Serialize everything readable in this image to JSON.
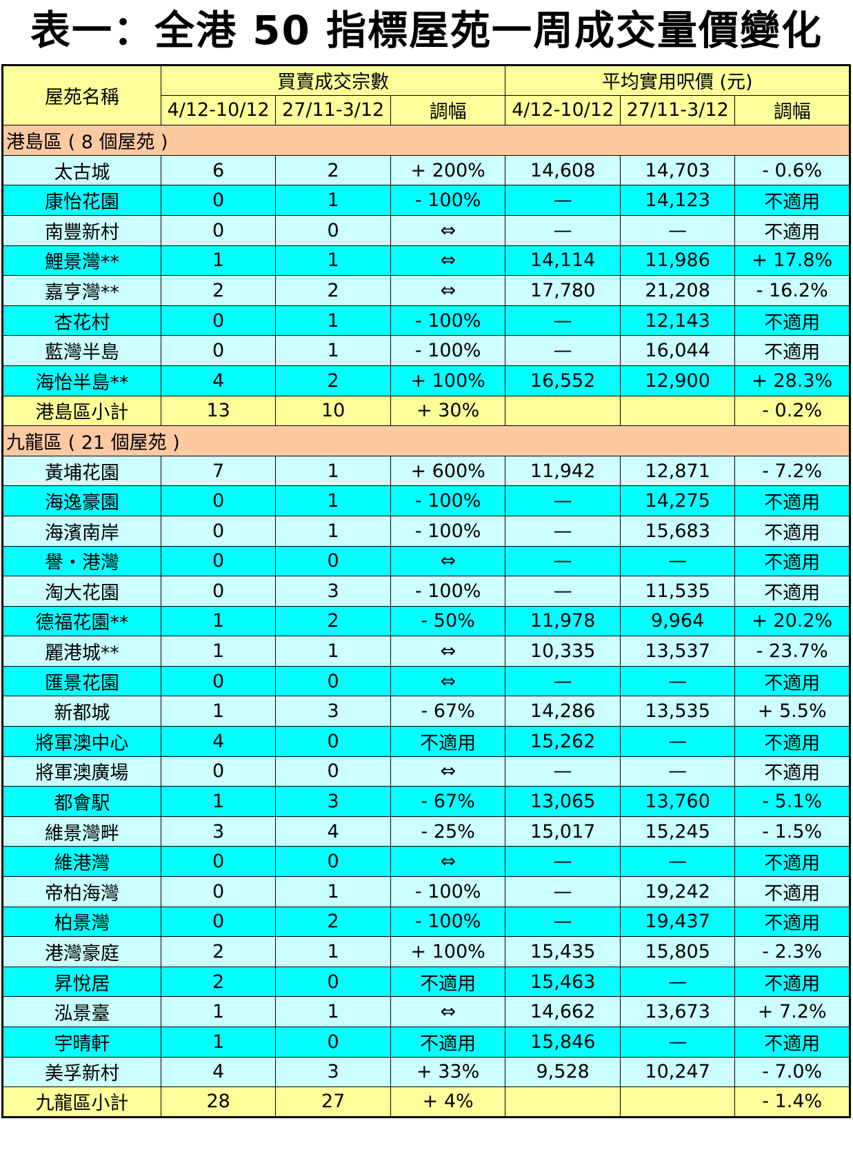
{
  "title": "表一：全港 50 指標屋苑一周成交量價變化",
  "header": {
    "estate_name": "屋苑名稱",
    "volume_group": "買賣成交宗數",
    "price_group": "平均實用呎價 (元)",
    "period_current": "4/12-10/12",
    "period_previous": "27/11-3/12",
    "change": "調幅"
  },
  "sections": [
    {
      "title": "港島區 ( 8 個屋苑 )",
      "rows": [
        {
          "name": "太古城",
          "v1": "6",
          "v2": "2",
          "vchg": "+ 200%",
          "p1": "14,608",
          "p2": "14,703",
          "pchg": "- 0.6%"
        },
        {
          "name": "康怡花園",
          "v1": "0",
          "v2": "1",
          "vchg": "- 100%",
          "p1": "—",
          "p2": "14,123",
          "pchg": "不適用"
        },
        {
          "name": "南豐新村",
          "v1": "0",
          "v2": "0",
          "vchg": "⇔",
          "p1": "—",
          "p2": "—",
          "pchg": "不適用"
        },
        {
          "name": "鯉景灣**",
          "v1": "1",
          "v2": "1",
          "vchg": "⇔",
          "p1": "14,114",
          "p2": "11,986",
          "pchg": "+ 17.8%"
        },
        {
          "name": "嘉亨灣**",
          "v1": "2",
          "v2": "2",
          "vchg": "⇔",
          "p1": "17,780",
          "p2": "21,208",
          "pchg": "- 16.2%"
        },
        {
          "name": "杏花村",
          "v1": "0",
          "v2": "1",
          "vchg": "- 100%",
          "p1": "—",
          "p2": "12,143",
          "pchg": "不適用"
        },
        {
          "name": "藍灣半島",
          "v1": "0",
          "v2": "1",
          "vchg": "- 100%",
          "p1": "—",
          "p2": "16,044",
          "pchg": "不適用"
        },
        {
          "name": "海怡半島**",
          "v1": "4",
          "v2": "2",
          "vchg": "+ 100%",
          "p1": "16,552",
          "p2": "12,900",
          "pchg": "+ 28.3%"
        }
      ],
      "subtotal": {
        "name": "港島區小計",
        "v1": "13",
        "v2": "10",
        "vchg": "+ 30%",
        "p1": "",
        "p2": "",
        "pchg": "- 0.2%"
      }
    },
    {
      "title": "九龍區 ( 21 個屋苑 )",
      "rows": [
        {
          "name": "黃埔花園",
          "v1": "7",
          "v2": "1",
          "vchg": "+ 600%",
          "p1": "11,942",
          "p2": "12,871",
          "pchg": "- 7.2%"
        },
        {
          "name": "海逸豪園",
          "v1": "0",
          "v2": "1",
          "vchg": "- 100%",
          "p1": "—",
          "p2": "14,275",
          "pchg": "不適用"
        },
        {
          "name": "海濱南岸",
          "v1": "0",
          "v2": "1",
          "vchg": "- 100%",
          "p1": "—",
          "p2": "15,683",
          "pchg": "不適用"
        },
        {
          "name": "譽・港灣",
          "v1": "0",
          "v2": "0",
          "vchg": "⇔",
          "p1": "—",
          "p2": "—",
          "pchg": "不適用"
        },
        {
          "name": "淘大花園",
          "v1": "0",
          "v2": "3",
          "vchg": "- 100%",
          "p1": "—",
          "p2": "11,535",
          "pchg": "不適用"
        },
        {
          "name": "德福花園**",
          "v1": "1",
          "v2": "2",
          "vchg": "- 50%",
          "p1": "11,978",
          "p2": "9,964",
          "pchg": "+ 20.2%"
        },
        {
          "name": "麗港城**",
          "v1": "1",
          "v2": "1",
          "vchg": "⇔",
          "p1": "10,335",
          "p2": "13,537",
          "pchg": "- 23.7%"
        },
        {
          "name": "匯景花園",
          "v1": "0",
          "v2": "0",
          "vchg": "⇔",
          "p1": "—",
          "p2": "—",
          "pchg": "不適用"
        },
        {
          "name": "新都城",
          "v1": "1",
          "v2": "3",
          "vchg": "- 67%",
          "p1": "14,286",
          "p2": "13,535",
          "pchg": "+ 5.5%"
        },
        {
          "name": "將軍澳中心",
          "v1": "4",
          "v2": "0",
          "vchg": "不適用",
          "p1": "15,262",
          "p2": "—",
          "pchg": "不適用"
        },
        {
          "name": "將軍澳廣場",
          "v1": "0",
          "v2": "0",
          "vchg": "⇔",
          "p1": "—",
          "p2": "—",
          "pchg": "不適用"
        },
        {
          "name": "都會駅",
          "v1": "1",
          "v2": "3",
          "vchg": "- 67%",
          "p1": "13,065",
          "p2": "13,760",
          "pchg": "- 5.1%"
        },
        {
          "name": "維景灣畔",
          "v1": "3",
          "v2": "4",
          "vchg": "- 25%",
          "p1": "15,017",
          "p2": "15,245",
          "pchg": "- 1.5%"
        },
        {
          "name": "維港灣",
          "v1": "0",
          "v2": "0",
          "vchg": "⇔",
          "p1": "—",
          "p2": "—",
          "pchg": "不適用"
        },
        {
          "name": "帝柏海灣",
          "v1": "0",
          "v2": "1",
          "vchg": "- 100%",
          "p1": "—",
          "p2": "19,242",
          "pchg": "不適用"
        },
        {
          "name": "柏景灣",
          "v1": "0",
          "v2": "2",
          "vchg": "- 100%",
          "p1": "—",
          "p2": "19,437",
          "pchg": "不適用"
        },
        {
          "name": "港灣豪庭",
          "v1": "2",
          "v2": "1",
          "vchg": "+ 100%",
          "p1": "15,435",
          "p2": "15,805",
          "pchg": "- 2.3%"
        },
        {
          "name": "昇悅居",
          "v1": "2",
          "v2": "0",
          "vchg": "不適用",
          "p1": "15,463",
          "p2": "—",
          "pchg": "不適用"
        },
        {
          "name": "泓景臺",
          "v1": "1",
          "v2": "1",
          "vchg": "⇔",
          "p1": "14,662",
          "p2": "13,673",
          "pchg": "+ 7.2%"
        },
        {
          "name": "宇晴軒",
          "v1": "1",
          "v2": "0",
          "vchg": "不適用",
          "p1": "15,846",
          "p2": "—",
          "pchg": "不適用"
        },
        {
          "name": "美孚新村",
          "v1": "4",
          "v2": "3",
          "vchg": "+ 33%",
          "p1": "9,528",
          "p2": "10,247",
          "pchg": "- 7.0%"
        }
      ],
      "subtotal": {
        "name": "九龍區小計",
        "v1": "28",
        "v2": "27",
        "vchg": "+ 4%",
        "p1": "",
        "p2": "",
        "pchg": "- 1.4%"
      }
    }
  ]
}
